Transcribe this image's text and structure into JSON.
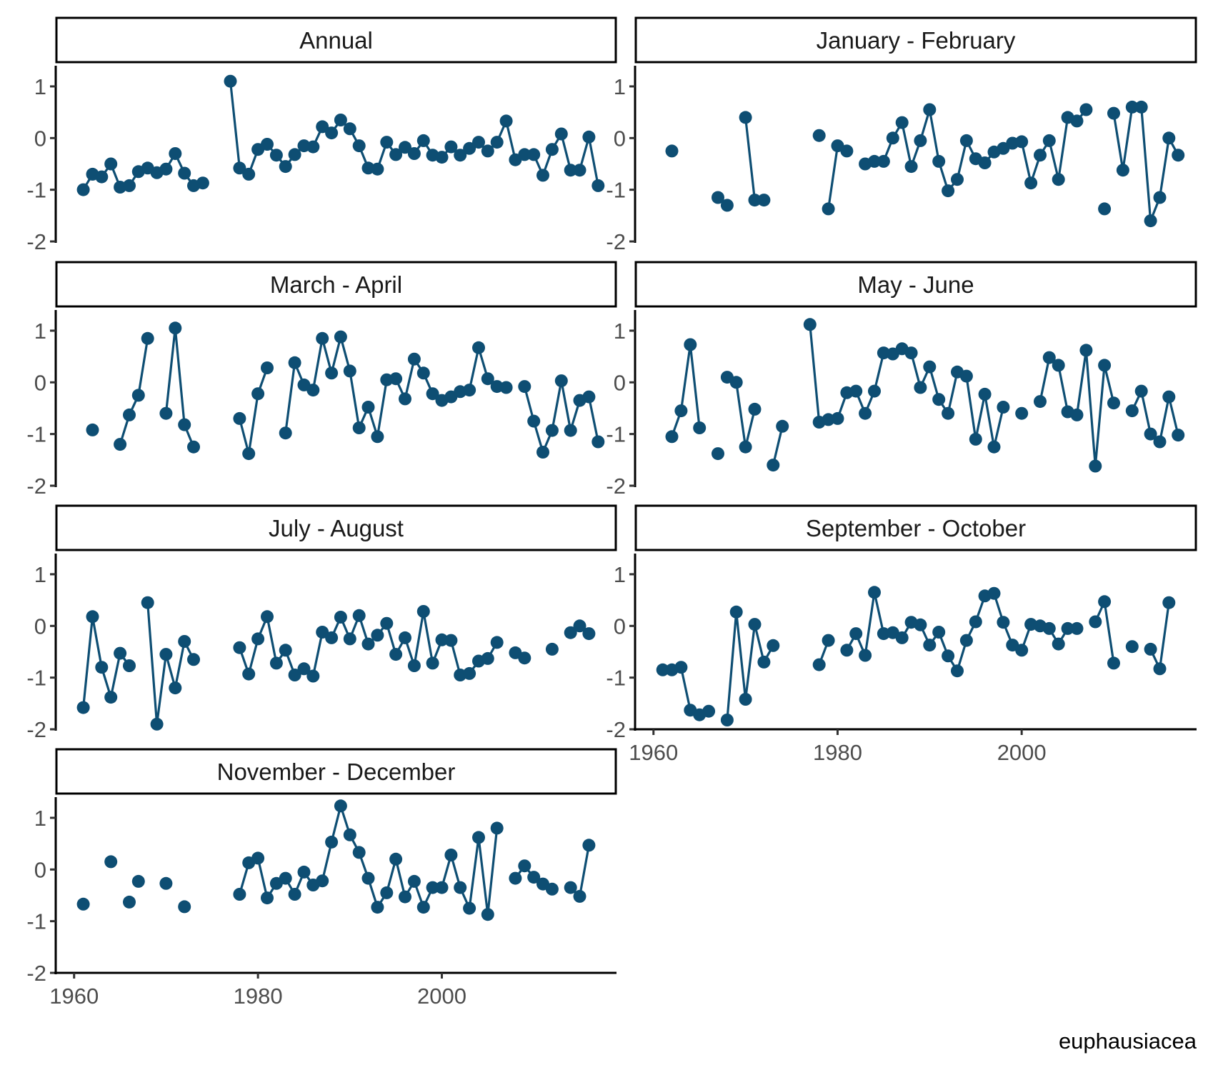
{
  "chart_data": {
    "type": "line",
    "layout": "facet-grid",
    "facet_columns": 2,
    "caption": "euphausiacea",
    "xlim": [
      1958,
      2019
    ],
    "ylim": [
      -2,
      1.4
    ],
    "x_ticks": [
      1960,
      1980,
      2000
    ],
    "y_ticks": [
      1,
      0,
      -1,
      -2
    ],
    "y_tick_labels": [
      "1",
      "0",
      "-1",
      "-2"
    ],
    "grid": false,
    "color": "#0e4e73",
    "panels": [
      {
        "title": "Annual",
        "x": [
          1961,
          1962,
          1963,
          1964,
          1965,
          1966,
          1967,
          1968,
          1969,
          1970,
          1971,
          1972,
          1973,
          1974,
          1977,
          1978,
          1979,
          1980,
          1981,
          1982,
          1983,
          1984,
          1985,
          1986,
          1987,
          1988,
          1989,
          1990,
          1991,
          1992,
          1993,
          1994,
          1995,
          1996,
          1997,
          1998,
          1999,
          2000,
          2001,
          2002,
          2003,
          2004,
          2005,
          2006,
          2007,
          2008,
          2009,
          2010,
          2011,
          2012,
          2013,
          2014,
          2015,
          2016,
          2017
        ],
        "y": [
          -1.0,
          -0.7,
          -0.75,
          -0.5,
          -0.95,
          -0.92,
          -0.65,
          -0.58,
          -0.67,
          -0.6,
          -0.3,
          -0.68,
          -0.92,
          -0.87,
          1.1,
          -0.58,
          -0.7,
          -0.22,
          -0.12,
          -0.33,
          -0.55,
          -0.32,
          -0.15,
          -0.17,
          0.22,
          0.1,
          0.35,
          0.18,
          -0.15,
          -0.58,
          -0.6,
          -0.08,
          -0.32,
          -0.18,
          -0.3,
          -0.05,
          -0.33,
          -0.37,
          -0.17,
          -0.33,
          -0.2,
          -0.08,
          -0.25,
          -0.08,
          0.33,
          -0.42,
          -0.32,
          -0.32,
          -0.72,
          -0.22,
          0.08,
          -0.62,
          -0.62,
          0.02,
          -0.92
        ],
        "breaks": [
          14
        ]
      },
      {
        "title": "January - February",
        "x": [
          1962,
          1967,
          1968,
          1970,
          1971,
          1972,
          1978,
          1979,
          1980,
          1981,
          1983,
          1984,
          1985,
          1986,
          1987,
          1988,
          1989,
          1990,
          1991,
          1992,
          1993,
          1994,
          1995,
          1996,
          1997,
          1998,
          1999,
          2000,
          2001,
          2002,
          2003,
          2004,
          2005,
          2006,
          2007,
          2009,
          2010,
          2011,
          2012,
          2013,
          2014,
          2015,
          2016,
          2017
        ],
        "y": [
          -0.25,
          -1.15,
          -1.3,
          0.4,
          -1.2,
          -1.2,
          0.05,
          -1.37,
          -0.15,
          -0.25,
          -0.5,
          -0.45,
          -0.45,
          0.0,
          0.3,
          -0.55,
          -0.05,
          0.55,
          -0.45,
          -1.02,
          -0.8,
          -0.05,
          -0.4,
          -0.48,
          -0.27,
          -0.2,
          -0.1,
          -0.07,
          -0.87,
          -0.33,
          -0.05,
          -0.8,
          0.4,
          0.33,
          0.55,
          -1.37,
          0.48,
          -0.62,
          0.6,
          0.6,
          -1.6,
          -1.15,
          0.0,
          -0.33
        ],
        "breaks": [
          1,
          2,
          3,
          6,
          7,
          9,
          10,
          35,
          36
        ]
      },
      {
        "title": "March - April",
        "x": [
          1962,
          1965,
          1966,
          1967,
          1968,
          1970,
          1971,
          1972,
          1973,
          1978,
          1979,
          1980,
          1981,
          1983,
          1984,
          1985,
          1986,
          1987,
          1988,
          1989,
          1990,
          1991,
          1992,
          1993,
          1994,
          1995,
          1996,
          1997,
          1998,
          1999,
          2000,
          2001,
          2002,
          2003,
          2004,
          2005,
          2006,
          2007,
          2009,
          2010,
          2011,
          2012,
          2013,
          2014,
          2015,
          2016,
          2017
        ],
        "y": [
          -0.92,
          -1.2,
          -0.63,
          -0.25,
          0.85,
          -0.6,
          1.05,
          -0.82,
          -1.25,
          -0.7,
          -1.38,
          -0.22,
          0.28,
          -0.98,
          0.38,
          -0.05,
          -0.15,
          0.85,
          0.18,
          0.88,
          0.22,
          -0.88,
          -0.48,
          -1.05,
          0.05,
          0.07,
          -0.32,
          0.45,
          0.18,
          -0.22,
          -0.35,
          -0.28,
          -0.18,
          -0.15,
          0.67,
          0.07,
          -0.08,
          -0.1,
          -0.08,
          -0.75,
          -1.35,
          -0.93,
          0.03,
          -0.93,
          -0.35,
          -0.28,
          -1.15
        ],
        "breaks": [
          1,
          5,
          9,
          13,
          38
        ]
      },
      {
        "title": "May - June",
        "x": [
          1962,
          1963,
          1964,
          1965,
          1967,
          1968,
          1969,
          1970,
          1971,
          1973,
          1974,
          1977,
          1978,
          1979,
          1980,
          1981,
          1982,
          1983,
          1984,
          1985,
          1986,
          1987,
          1988,
          1989,
          1990,
          1991,
          1992,
          1993,
          1994,
          1995,
          1996,
          1997,
          1998,
          2000,
          2002,
          2003,
          2004,
          2005,
          2006,
          2007,
          2008,
          2009,
          2010,
          2012,
          2013,
          2014,
          2015,
          2016,
          2017
        ],
        "y": [
          -1.05,
          -0.55,
          0.73,
          -0.88,
          -1.38,
          0.1,
          0.0,
          -1.25,
          -0.52,
          -1.6,
          -0.85,
          1.12,
          -0.77,
          -0.72,
          -0.7,
          -0.2,
          -0.17,
          -0.6,
          -0.17,
          0.57,
          0.55,
          0.65,
          0.57,
          -0.1,
          0.3,
          -0.33,
          -0.6,
          0.2,
          0.12,
          -1.1,
          -0.23,
          -1.25,
          -0.48,
          -0.6,
          -0.37,
          0.48,
          0.33,
          -0.57,
          -0.63,
          0.62,
          -1.62,
          0.33,
          -0.4,
          -0.55,
          -0.17,
          -1.0,
          -1.15,
          -0.28,
          -1.02
        ],
        "breaks": [
          4,
          5,
          9,
          11,
          33,
          34,
          43
        ]
      },
      {
        "title": "July - August",
        "x": [
          1961,
          1962,
          1963,
          1964,
          1965,
          1966,
          1968,
          1969,
          1970,
          1971,
          1972,
          1973,
          1978,
          1979,
          1980,
          1981,
          1982,
          1983,
          1984,
          1985,
          1986,
          1987,
          1988,
          1989,
          1990,
          1991,
          1992,
          1993,
          1994,
          1995,
          1996,
          1997,
          1998,
          1999,
          2000,
          2001,
          2002,
          2003,
          2004,
          2005,
          2006,
          2008,
          2009,
          2012,
          2014,
          2015,
          2016
        ],
        "y": [
          -1.58,
          0.18,
          -0.8,
          -1.38,
          -0.53,
          -0.77,
          0.45,
          -1.9,
          -0.55,
          -1.2,
          -0.3,
          -0.65,
          -0.42,
          -0.93,
          -0.25,
          0.18,
          -0.72,
          -0.47,
          -0.95,
          -0.83,
          -0.97,
          -0.12,
          -0.23,
          0.17,
          -0.25,
          0.2,
          -0.35,
          -0.18,
          0.05,
          -0.55,
          -0.23,
          -0.77,
          0.28,
          -0.72,
          -0.27,
          -0.28,
          -0.95,
          -0.92,
          -0.68,
          -0.63,
          -0.32,
          -0.52,
          -0.62,
          -0.45,
          -0.13,
          0.0,
          -0.15
        ],
        "breaks": [
          6,
          12,
          41,
          43,
          44
        ]
      },
      {
        "title": "September - October",
        "x": [
          1961,
          1962,
          1963,
          1964,
          1965,
          1966,
          1968,
          1969,
          1970,
          1971,
          1972,
          1973,
          1978,
          1979,
          1981,
          1982,
          1983,
          1984,
          1985,
          1986,
          1987,
          1988,
          1989,
          1990,
          1991,
          1992,
          1993,
          1994,
          1995,
          1996,
          1997,
          1998,
          1999,
          2000,
          2001,
          2002,
          2003,
          2004,
          2005,
          2006,
          2008,
          2009,
          2010,
          2012,
          2014,
          2015,
          2016
        ],
        "y": [
          -0.85,
          -0.85,
          -0.8,
          -1.63,
          -1.72,
          -1.65,
          -1.82,
          0.27,
          -1.42,
          0.03,
          -0.7,
          -0.38,
          -0.75,
          -0.28,
          -0.47,
          -0.15,
          -0.57,
          0.65,
          -0.15,
          -0.13,
          -0.23,
          0.07,
          0.02,
          -0.37,
          -0.12,
          -0.58,
          -0.87,
          -0.28,
          0.08,
          0.58,
          0.63,
          0.07,
          -0.37,
          -0.47,
          0.03,
          0.0,
          -0.05,
          -0.35,
          -0.05,
          -0.05,
          0.08,
          0.47,
          -0.72,
          -0.4,
          -0.45,
          -0.83,
          0.45
        ],
        "breaks": [
          6,
          12,
          14,
          40,
          43,
          44
        ]
      },
      {
        "title": "November - December",
        "x": [
          1961,
          1964,
          1966,
          1967,
          1970,
          1972,
          1978,
          1979,
          1980,
          1981,
          1982,
          1983,
          1984,
          1985,
          1986,
          1987,
          1988,
          1989,
          1990,
          1991,
          1992,
          1993,
          1994,
          1995,
          1996,
          1997,
          1998,
          1999,
          2000,
          2001,
          2002,
          2003,
          2004,
          2005,
          2006,
          2008,
          2009,
          2010,
          2011,
          2012,
          2014,
          2015,
          2016
        ],
        "y": [
          -0.67,
          0.15,
          -0.63,
          -0.23,
          -0.27,
          -0.72,
          -0.48,
          0.13,
          0.22,
          -0.55,
          -0.27,
          -0.17,
          -0.48,
          -0.05,
          -0.3,
          -0.22,
          0.53,
          1.23,
          0.67,
          0.33,
          -0.17,
          -0.73,
          -0.45,
          0.2,
          -0.53,
          -0.23,
          -0.73,
          -0.35,
          -0.35,
          0.28,
          -0.35,
          -0.75,
          0.62,
          -0.87,
          0.8,
          -0.17,
          0.07,
          -0.15,
          -0.28,
          -0.38,
          -0.35,
          -0.52,
          0.47
        ],
        "breaks": [
          1,
          2,
          3,
          4,
          5,
          6,
          35,
          40
        ]
      }
    ]
  }
}
